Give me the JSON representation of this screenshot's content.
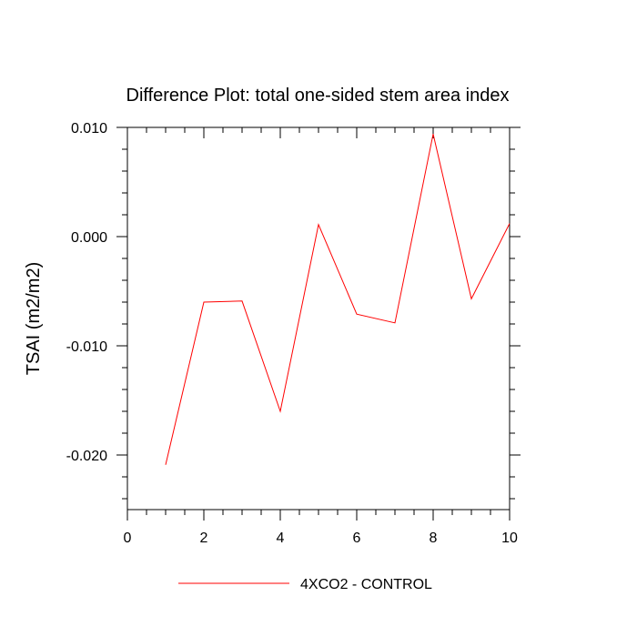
{
  "chart_data": {
    "type": "line",
    "title": "Difference Plot: total one-sided stem area index",
    "xlabel": "",
    "ylabel": "TSAI  (m2/m2)",
    "xlim": [
      0,
      10
    ],
    "ylim": [
      -0.025,
      0.01
    ],
    "x_ticks": [
      0,
      2,
      4,
      6,
      8,
      10
    ],
    "x_tick_labels": [
      "0",
      "2",
      "4",
      "6",
      "8",
      "10"
    ],
    "y_ticks": [
      0.01,
      0.0,
      -0.01,
      -0.02
    ],
    "y_tick_labels": [
      "0.010",
      "0.000",
      "-0.010",
      "-0.020"
    ],
    "grid": false,
    "legend_position": "bottom-center",
    "series": [
      {
        "name": "4XCO2 - CONTROL",
        "color": "#ff0000",
        "x": [
          1,
          2,
          3,
          4,
          5,
          6,
          7,
          8,
          9,
          10
        ],
        "values": [
          -0.0209,
          -0.006,
          -0.0059,
          -0.016,
          0.0011,
          -0.0071,
          -0.0079,
          0.0094,
          -0.0057,
          0.0012
        ]
      }
    ]
  }
}
